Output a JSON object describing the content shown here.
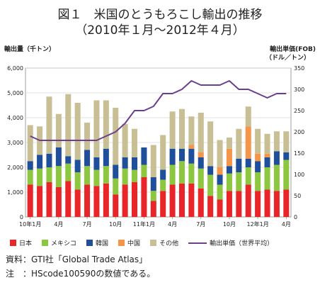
{
  "title_line1": "図１　米国のとうもろこし輸出の推移",
  "title_line2": "（2010年１月～2012年４月）",
  "left_unit": "輸出量（千トン）",
  "right_unit_line1": "輸出単価(FOB)",
  "right_unit_line2": "（ドル／トン）",
  "notes": {
    "source": "資料：GTI社「Global Trade Atlas」",
    "note": "注　：HScode100590の数値である。"
  },
  "colors": {
    "japan": "#e8262a",
    "mexico": "#8dc63f",
    "korea": "#1f4e9b",
    "china": "#f5954a",
    "other": "#c9bf95",
    "price": "#6b3f8e"
  },
  "chart_data": {
    "type": "bar",
    "stacked": true,
    "categories": [
      "10年1月",
      "2",
      "3",
      "4",
      "5",
      "6",
      "7",
      "8",
      "9",
      "10",
      "11",
      "12",
      "11年1月",
      "2",
      "3",
      "4",
      "5",
      "6",
      "7",
      "8",
      "9",
      "10",
      "11",
      "12",
      "12年1月",
      "2",
      "3",
      "4"
    ],
    "x_tick_labels": [
      {
        "index": 0,
        "label": "10年1月"
      },
      {
        "index": 3,
        "label": "4月"
      },
      {
        "index": 6,
        "label": "7月"
      },
      {
        "index": 9,
        "label": "10月"
      },
      {
        "index": 12,
        "label": "11年1月"
      },
      {
        "index": 15,
        "label": "4月"
      },
      {
        "index": 18,
        "label": "7月"
      },
      {
        "index": 21,
        "label": "10月"
      },
      {
        "index": 24,
        "label": "12年1月"
      },
      {
        "index": 27,
        "label": "4月"
      }
    ],
    "series": [
      {
        "name": "日本",
        "key": "japan",
        "values": [
          1300,
          1250,
          1400,
          1200,
          1450,
          1100,
          1300,
          1250,
          1350,
          900,
          1300,
          1400,
          1600,
          650,
          1050,
          1300,
          1350,
          1350,
          1150,
          850,
          700,
          1050,
          1050,
          1300,
          1050,
          1100,
          1050,
          1100
        ]
      },
      {
        "name": "メキシコ",
        "key": "mexico",
        "values": [
          600,
          700,
          600,
          850,
          700,
          700,
          750,
          650,
          700,
          650,
          650,
          500,
          500,
          400,
          450,
          800,
          900,
          800,
          800,
          850,
          600,
          700,
          750,
          700,
          750,
          900,
          1050,
          1200
        ]
      },
      {
        "name": "韓国",
        "key": "korea",
        "values": [
          350,
          550,
          550,
          750,
          300,
          500,
          650,
          500,
          700,
          550,
          450,
          500,
          700,
          550,
          400,
          650,
          500,
          600,
          450,
          350,
          400,
          300,
          550,
          350,
          450,
          400,
          550,
          300
        ]
      },
      {
        "name": "中国",
        "key": "china",
        "values": [
          0,
          0,
          0,
          0,
          0,
          0,
          0,
          0,
          0,
          0,
          0,
          0,
          0,
          0,
          0,
          0,
          0,
          150,
          200,
          0,
          300,
          700,
          0,
          1300,
          300,
          150,
          0,
          0
        ]
      },
      {
        "name": "その他",
        "key": "other",
        "values": [
          1450,
          1150,
          2300,
          1350,
          2500,
          2300,
          1100,
          2300,
          1950,
          2300,
          1350,
          1150,
          0,
          1300,
          1400,
          1500,
          1600,
          1150,
          1600,
          1800,
          1100,
          450,
          1200,
          800,
          1000,
          800,
          800,
          850
        ]
      }
    ],
    "line_series": {
      "name": "輸出単価（世界平均）",
      "key": "price",
      "axis": "right",
      "values": [
        190,
        180,
        180,
        180,
        180,
        180,
        180,
        180,
        190,
        200,
        220,
        250,
        250,
        260,
        290,
        290,
        300,
        320,
        310,
        310,
        310,
        320,
        300,
        300,
        290,
        280,
        290,
        290
      ]
    },
    "y_left": {
      "min": 0,
      "max": 6000,
      "ticks": [
        0,
        1000,
        2000,
        3000,
        4000,
        5000,
        6000
      ],
      "tick_labels": [
        "0",
        "1,000",
        "2,000",
        "3,000",
        "4,000",
        "5,000",
        "6,000"
      ]
    },
    "y_right": {
      "min": 0,
      "max": 350,
      "ticks": [
        0,
        50,
        100,
        150,
        200,
        250,
        300,
        350
      ],
      "tick_labels": [
        "0",
        "50",
        "100",
        "150",
        "200",
        "250",
        "300",
        "350"
      ]
    },
    "grid": true,
    "legend_position": "bottom"
  }
}
